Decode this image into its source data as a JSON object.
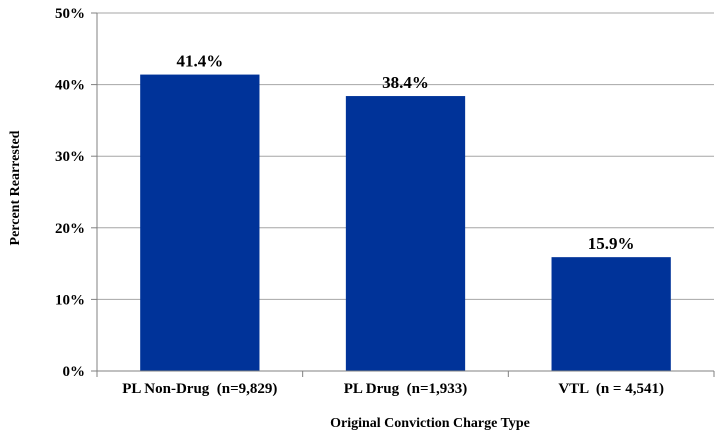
{
  "chart_data": {
    "type": "bar",
    "categories": [
      "PL Non-Drug  (n=9,829)",
      "PL Drug  (n=1,933)",
      "VTL  (n = 4,541)"
    ],
    "values": [
      41.4,
      38.4,
      15.9
    ],
    "data_labels": [
      "41.4%",
      "38.4%",
      "15.9%"
    ],
    "title": "",
    "xlabel": "Original Conviction Charge Type",
    "ylabel": "Percent Rearrested",
    "ylim": [
      0,
      50
    ],
    "y_ticks": [
      "0%",
      "10%",
      "20%",
      "30%",
      "40%",
      "50%"
    ],
    "grid": true,
    "legend": "none",
    "bar_color": "#003399",
    "grid_color": "#a6a6a6"
  }
}
